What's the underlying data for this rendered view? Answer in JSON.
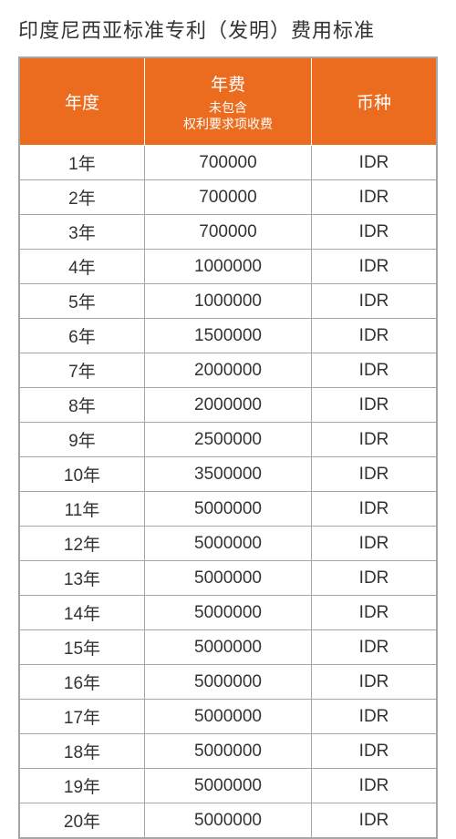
{
  "title": "印度尼西亚标准专利（发明）费用标准",
  "table": {
    "header_bg": "#ec6c1f",
    "header_fg": "#ffffff",
    "border_color": "#a6a6a6",
    "columns": [
      {
        "label": "年度",
        "sub": null
      },
      {
        "label": "年费",
        "sub": "未包含\n权利要求项收费"
      },
      {
        "label": "币种",
        "sub": null
      }
    ],
    "rows": [
      {
        "year": "1年",
        "fee": "700000",
        "currency": "IDR"
      },
      {
        "year": "2年",
        "fee": "700000",
        "currency": "IDR"
      },
      {
        "year": "3年",
        "fee": "700000",
        "currency": "IDR"
      },
      {
        "year": "4年",
        "fee": "1000000",
        "currency": "IDR"
      },
      {
        "year": "5年",
        "fee": "1000000",
        "currency": "IDR"
      },
      {
        "year": "6年",
        "fee": "1500000",
        "currency": "IDR"
      },
      {
        "year": "7年",
        "fee": "2000000",
        "currency": "IDR"
      },
      {
        "year": "8年",
        "fee": "2000000",
        "currency": "IDR"
      },
      {
        "year": "9年",
        "fee": "2500000",
        "currency": "IDR"
      },
      {
        "year": "10年",
        "fee": "3500000",
        "currency": "IDR"
      },
      {
        "year": "11年",
        "fee": "5000000",
        "currency": "IDR"
      },
      {
        "year": "12年",
        "fee": "5000000",
        "currency": "IDR"
      },
      {
        "year": "13年",
        "fee": "5000000",
        "currency": "IDR"
      },
      {
        "year": "14年",
        "fee": "5000000",
        "currency": "IDR"
      },
      {
        "year": "15年",
        "fee": "5000000",
        "currency": "IDR"
      },
      {
        "year": "16年",
        "fee": "5000000",
        "currency": "IDR"
      },
      {
        "year": "17年",
        "fee": "5000000",
        "currency": "IDR"
      },
      {
        "year": "18年",
        "fee": "5000000",
        "currency": "IDR"
      },
      {
        "year": "19年",
        "fee": "5000000",
        "currency": "IDR"
      },
      {
        "year": "20年",
        "fee": "5000000",
        "currency": "IDR"
      }
    ]
  }
}
